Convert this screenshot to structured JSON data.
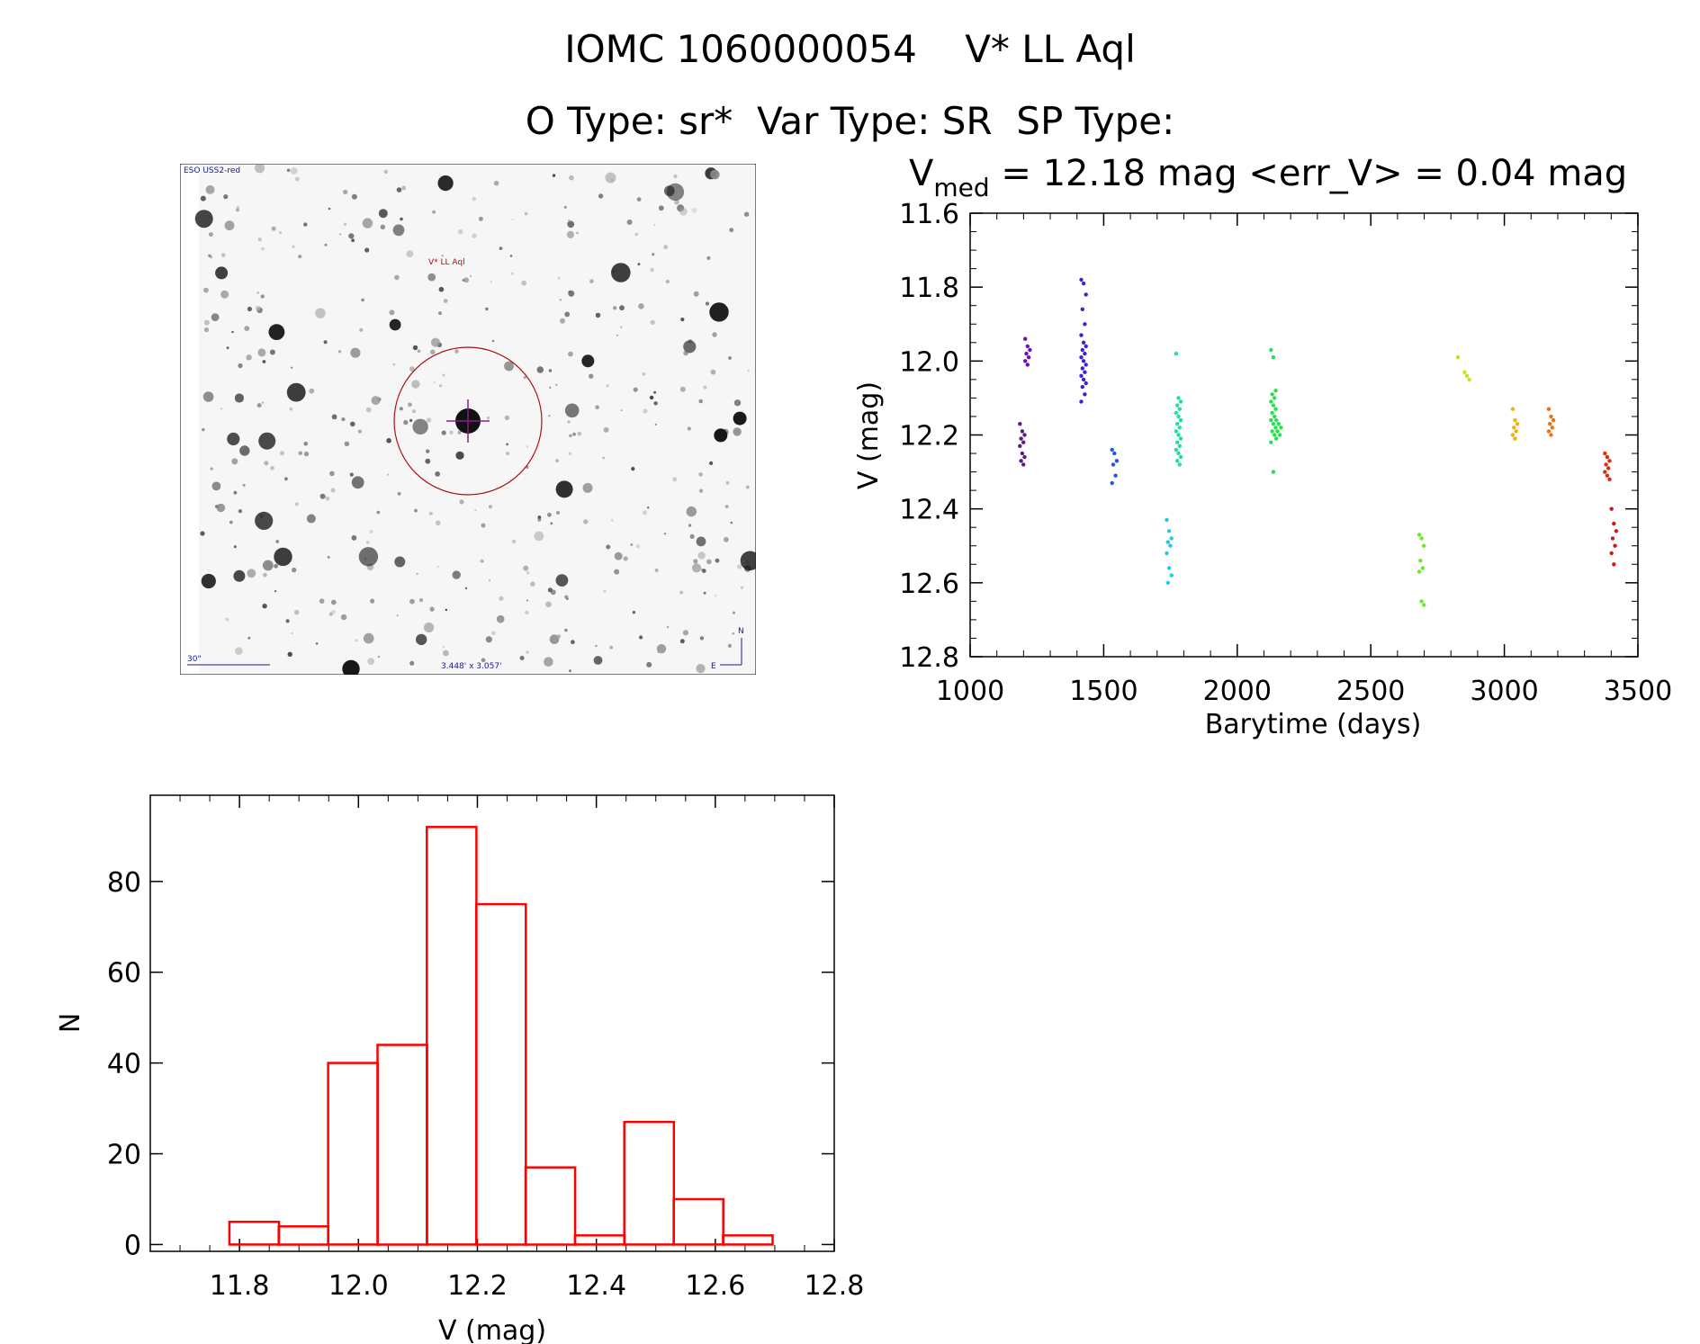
{
  "header": {
    "line1": "IOMC 1060000054    V* LL Aql",
    "line2": "O Type: sr*  Var Type: SR  SP Type:"
  },
  "finder_image": {
    "survey_label": "ESO USS2-red",
    "target_label": "V* LL Aql",
    "scale_label": "30\"",
    "size_label": "3.448' x 3.057'",
    "north_label": "N",
    "east_label": "E"
  },
  "chart_data": [
    {
      "type": "scatter",
      "title_prefix": "V",
      "title_subscript": "med",
      "title_suffix": " = 12.18 mag <err_V> = 0.04 mag",
      "xlabel": "Barytime (days)",
      "ylabel": "V (mag)",
      "xlim": [
        1000,
        3500
      ],
      "ylim": [
        12.8,
        11.6
      ],
      "xticks": [
        "1000",
        "1500",
        "2000",
        "2500",
        "3000",
        "3500"
      ],
      "yticks": [
        "11.6",
        "11.8",
        "12.0",
        "12.2",
        "12.4",
        "12.6",
        "12.8"
      ],
      "groups": [
        {
          "x": 1195,
          "color": "#5a1a8a",
          "values": [
            12.17,
            12.19,
            12.2,
            12.21,
            12.22,
            12.23,
            12.25,
            12.26,
            12.27,
            12.28
          ]
        },
        {
          "x": 1215,
          "color": "#6a10c0",
          "values": [
            11.94,
            11.96,
            11.97,
            11.98,
            11.99,
            12.0,
            12.01
          ]
        },
        {
          "x": 1425,
          "color": "#3b22d8",
          "values": [
            11.78,
            11.79,
            11.82,
            11.86,
            11.9,
            11.93,
            11.95,
            11.96,
            11.97,
            11.98,
            11.99,
            12.0,
            12.01,
            12.02,
            12.03,
            12.04,
            12.05,
            12.06,
            12.07,
            12.09,
            12.11
          ]
        },
        {
          "x": 1540,
          "color": "#1e56e8",
          "values": [
            12.24,
            12.25,
            12.27,
            12.28,
            12.31,
            12.33
          ]
        },
        {
          "x": 1745,
          "color": "#22c8e8",
          "values": [
            12.43,
            12.46,
            12.48,
            12.49,
            12.5,
            12.52,
            12.56,
            12.58,
            12.6
          ]
        },
        {
          "x": 1780,
          "color": "#22e098",
          "values": [
            11.98,
            12.1,
            12.11,
            12.12,
            12.13,
            12.14,
            12.15,
            12.16,
            12.17,
            12.18,
            12.19,
            12.2,
            12.21,
            12.22,
            12.23,
            12.24,
            12.25,
            12.26,
            12.27,
            12.28
          ]
        },
        {
          "x": 2135,
          "color": "#28e050",
          "values": [
            11.97,
            11.99,
            12.08,
            12.09,
            12.1,
            12.11,
            12.12,
            12.13,
            12.14,
            12.15,
            12.16,
            12.17,
            12.18,
            12.19,
            12.2,
            12.22,
            12.3
          ]
        },
        {
          "x": 2155,
          "color": "#28e050",
          "values": [
            12.16,
            12.17,
            12.18,
            12.19,
            12.2,
            12.21
          ]
        },
        {
          "x": 2690,
          "color": "#6ee82a",
          "values": [
            12.47,
            12.48,
            12.5,
            12.54,
            12.56,
            12.57,
            12.65,
            12.66
          ]
        },
        {
          "x": 2835,
          "color": "#c8e020",
          "values": [
            11.99
          ]
        },
        {
          "x": 2860,
          "color": "#c8e020",
          "values": [
            12.03,
            12.04,
            12.05
          ]
        },
        {
          "x": 3040,
          "color": "#f0b010",
          "values": [
            12.13,
            12.16,
            12.17,
            12.18,
            12.19,
            12.2,
            12.21
          ]
        },
        {
          "x": 3175,
          "color": "#f07010",
          "values": [
            12.13,
            12.15,
            12.16,
            12.17,
            12.18,
            12.19,
            12.2
          ]
        },
        {
          "x": 3385,
          "color": "#e02a10",
          "values": [
            12.25,
            12.26,
            12.27,
            12.28,
            12.29,
            12.3,
            12.31,
            12.32
          ]
        },
        {
          "x": 3410,
          "color": "#d01818",
          "values": [
            12.4,
            12.44,
            12.46,
            12.48,
            12.5,
            12.52,
            12.55
          ]
        }
      ]
    },
    {
      "type": "bar",
      "xlabel": "V (mag)",
      "ylabel": "N",
      "xlim": [
        11.65,
        12.8
      ],
      "ylim": [
        -1.5,
        99
      ],
      "xticks": [
        "11.8",
        "12.0",
        "12.2",
        "12.4",
        "12.6",
        "12.8"
      ],
      "yticks": [
        "0",
        "20",
        "40",
        "60",
        "80"
      ],
      "bin_width": 0.0833,
      "bins": [
        {
          "start": 11.783,
          "value": 5
        },
        {
          "start": 11.866,
          "value": 4
        },
        {
          "start": 11.949,
          "value": 40
        },
        {
          "start": 12.032,
          "value": 44
        },
        {
          "start": 12.115,
          "value": 92
        },
        {
          "start": 12.198,
          "value": 75
        },
        {
          "start": 12.281,
          "value": 17
        },
        {
          "start": 12.364,
          "value": 2
        },
        {
          "start": 12.447,
          "value": 27
        },
        {
          "start": 12.53,
          "value": 10
        },
        {
          "start": 12.613,
          "value": 2
        }
      ],
      "color": "#ff0000"
    }
  ]
}
